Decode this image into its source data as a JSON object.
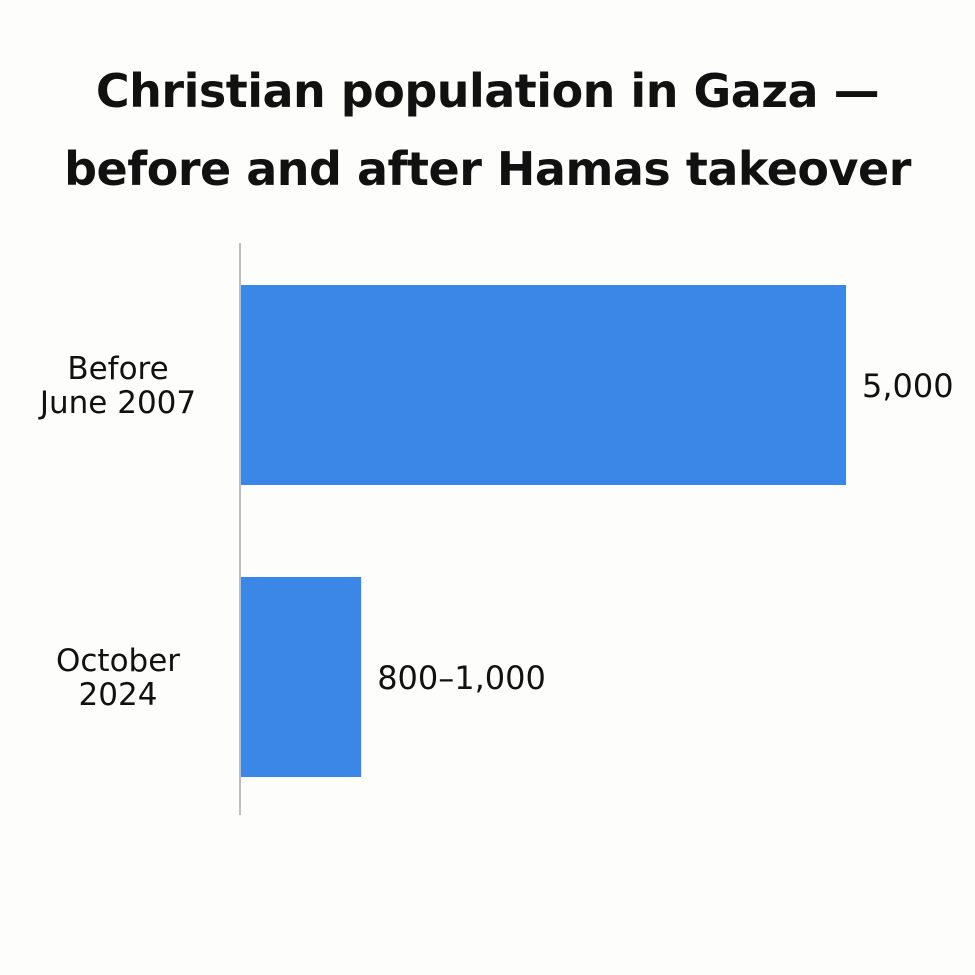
{
  "title_lines": [
    "Christian population in Gaza —",
    "before and after Hamas takeover"
  ],
  "colors": {
    "bar": "#3a87e8",
    "axis": "#bdbdbd",
    "text": "#111111"
  },
  "chart_data": {
    "type": "bar",
    "orientation": "horizontal",
    "title": "Christian population in Gaza — before and after Hamas takeover",
    "categories": [
      [
        "Before",
        "June 2007"
      ],
      [
        "October",
        "2024"
      ]
    ],
    "values": [
      5000,
      1000
    ],
    "value_ranges": [
      [
        5000,
        5000
      ],
      [
        800,
        1000
      ]
    ],
    "data_labels": [
      "5,000",
      "800–1,000"
    ],
    "xlim": [
      0,
      5000
    ],
    "grid": false,
    "legend": "none"
  }
}
